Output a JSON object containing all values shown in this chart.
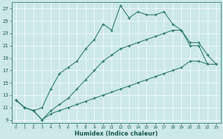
{
  "xlabel": "Humidex (Indice chaleur)",
  "bg_color": "#cce8e8",
  "line_color": "#2a7a6a",
  "xlim": [
    -0.5,
    23.5
  ],
  "ylim": [
    8.5,
    28
  ],
  "yticks": [
    9,
    11,
    13,
    15,
    17,
    19,
    21,
    23,
    25,
    27
  ],
  "xticks": [
    0,
    1,
    2,
    3,
    4,
    5,
    6,
    7,
    8,
    9,
    10,
    11,
    12,
    13,
    14,
    15,
    16,
    17,
    18,
    19,
    20,
    21,
    22,
    23
  ],
  "curve1_x": [
    0,
    1,
    2,
    3,
    4,
    5,
    6,
    7,
    8,
    9,
    10,
    11,
    12,
    13,
    14,
    15,
    16,
    17,
    18,
    19,
    20,
    21,
    22
  ],
  "curve1_y": [
    12.2,
    11.0,
    10.5,
    11.0,
    14.0,
    16.5,
    17.5,
    18.5,
    20.5,
    22.0,
    24.5,
    23.5,
    27.5,
    25.5,
    26.5,
    26.0,
    26.0,
    26.5,
    24.5,
    23.5,
    21.0,
    21.0,
    18.0
  ],
  "curve2_x": [
    0,
    1,
    2,
    3,
    4,
    5,
    6,
    7,
    8,
    9,
    10,
    11,
    12,
    13,
    14,
    15,
    16,
    17,
    18,
    19,
    20,
    21,
    22,
    23
  ],
  "curve2_y": [
    12.2,
    11.0,
    10.5,
    9.0,
    10.5,
    11.5,
    12.5,
    14.0,
    15.5,
    17.0,
    18.5,
    19.5,
    20.5,
    21.0,
    21.5,
    22.0,
    22.5,
    23.0,
    23.5,
    23.5,
    21.5,
    21.5,
    19.5,
    18.0
  ],
  "curve3_x": [
    0,
    1,
    2,
    3,
    4,
    5,
    6,
    7,
    8,
    9,
    10,
    11,
    12,
    13,
    14,
    15,
    16,
    17,
    18,
    19,
    20,
    21,
    22,
    23
  ],
  "curve3_y": [
    12.2,
    11.0,
    10.5,
    9.0,
    10.0,
    10.5,
    11.0,
    11.5,
    12.0,
    12.5,
    13.0,
    13.5,
    14.0,
    14.5,
    15.0,
    15.5,
    16.0,
    16.5,
    17.0,
    17.5,
    18.5,
    18.5,
    18.0,
    18.0
  ]
}
